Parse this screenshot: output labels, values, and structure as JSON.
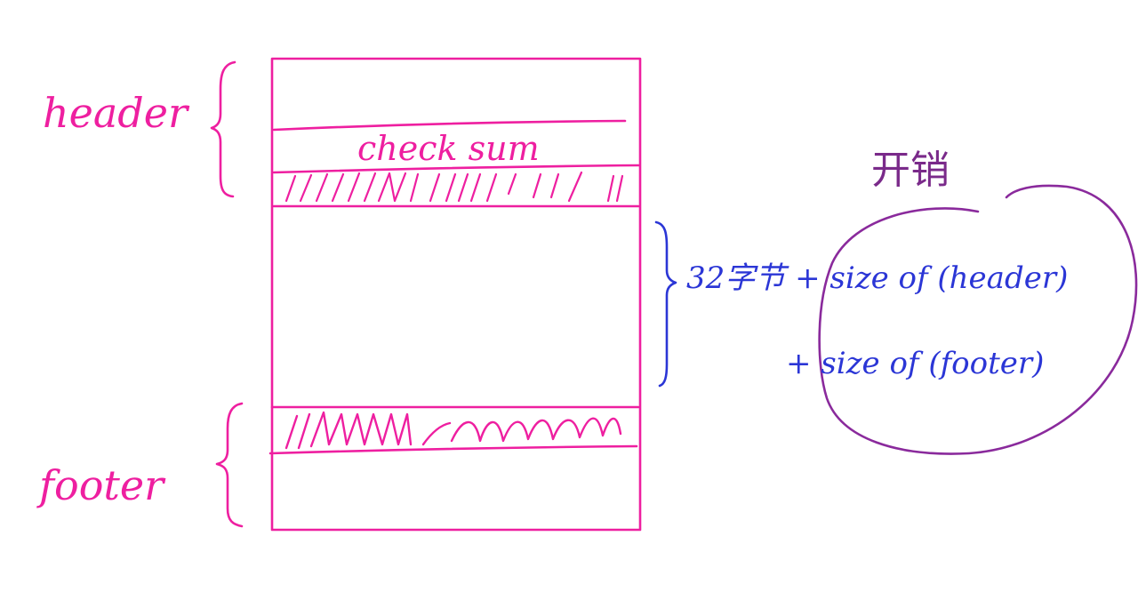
{
  "labels": {
    "header": "header",
    "footer": "footer",
    "checksum": "check sum",
    "overhead": "开销",
    "formula_line1": "32字节 + size of (header)",
    "formula_line2": "+ size of (footer)"
  },
  "colors": {
    "pink": "#ee1fa0",
    "blue": "#2b36d6",
    "purple": "#8a2a9c"
  }
}
